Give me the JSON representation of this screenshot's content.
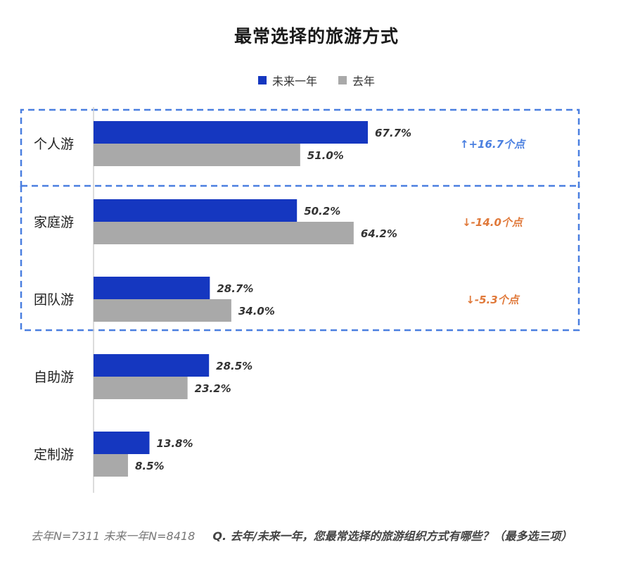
{
  "colors": {
    "future": "#1537c0",
    "last": "#a9a9a9",
    "box": "#4a7fe0",
    "up": "#4a7fe0",
    "down": "#e0793a"
  },
  "chart_data": {
    "type": "bar",
    "orientation": "horizontal",
    "title": "最常选择的旅游方式",
    "categories": [
      "个人游",
      "家庭游",
      "团队游",
      "自助游",
      "定制游"
    ],
    "series": [
      {
        "name": "未来一年",
        "values": [
          67.7,
          50.2,
          28.7,
          28.5,
          13.8
        ],
        "labels": [
          "67.7%",
          "50.2%",
          "28.7%",
          "28.5%",
          "13.8%"
        ]
      },
      {
        "name": "去年",
        "values": [
          51.0,
          64.2,
          34.0,
          23.2,
          8.5
        ],
        "labels": [
          "51.0%",
          "64.2%",
          "34.0%",
          "23.2%",
          "8.5%"
        ]
      }
    ],
    "annotations": [
      {
        "category": "个人游",
        "text": "↑+16.7个点",
        "direction": "up"
      },
      {
        "category": "家庭游",
        "text": "↓-14.0个点",
        "direction": "down"
      },
      {
        "category": "团队游",
        "text": "↓-5.3个点",
        "direction": "down"
      }
    ],
    "legend_position": "top",
    "grid": false
  },
  "footnote": {
    "sample": "去年N=7311 未来一年N=8418",
    "question": "Q. 去年/未来一年，您最常选择的旅游组织方式有哪些？（最多选三项）"
  }
}
